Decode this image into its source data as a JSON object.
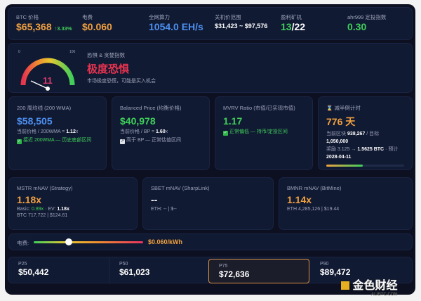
{
  "top": {
    "btc_label": "BTC 价格",
    "btc_price": "$65,368",
    "btc_change": "↑3.33%",
    "elec_label": "电费",
    "elec_value": "$0.060",
    "hash_label": "全网算力",
    "hash_value": "1054.0 EH/s",
    "shutdown_label": "关机价范围",
    "shutdown_value": "$31,423 ~ $97,576",
    "miners_label": "盈利矿机",
    "miners_profit": "13",
    "miners_total": "/22",
    "ahr_label": "ahr999 定投指数",
    "ahr_value": "0.30"
  },
  "fear": {
    "min": "0",
    "max": "100",
    "value": "11",
    "title": "恐惧 & 贪婪指数",
    "state": "极度恐惧",
    "desc": "市场极度恐慌，可能是买入机会"
  },
  "wma": {
    "title": "200 周均线 (200 WMA)",
    "value": "$58,505",
    "ratio_prefix": "当前价格 / 200WMA = ",
    "ratio": "1.12",
    "ratio_suffix": "x",
    "note": "接近 200WMA — 历史底部区间"
  },
  "bp": {
    "title": "Balanced Price (均衡价格)",
    "value": "$40,978",
    "ratio_prefix": "当前价格 / BP = ",
    "ratio": "1.60",
    "ratio_suffix": "x",
    "note": "高于 BP — 正常估值区间"
  },
  "mvrv": {
    "title": "MVRV Ratio (市值/已实现市值)",
    "value": "1.17",
    "note": "正常偏低 — 持币/定投区间"
  },
  "halving": {
    "title": "减半倒计时",
    "value": "776 天",
    "block_prefix": "当前区块 ",
    "block": "938,267",
    "target_prefix": " / 目标",
    "target": "1,050,000",
    "reward_prefix": "奖励 3.125 → ",
    "reward": "1.5625 BTC",
    "est": " · 预计",
    "date": "2028-04-11",
    "progress": 0.47
  },
  "mstr": {
    "title": "MSTR mNAV (Strategy)",
    "value": "1.18x",
    "basic_label": "Basic: ",
    "basic": "0.89x",
    "ev_label": " · EV: ",
    "ev": "1.18x",
    "holdings": "BTC 717,722 | $124.61"
  },
  "sbet": {
    "title": "SBET mNAV (SharpLink)",
    "value": "--",
    "holdings": "ETH: -- | $--"
  },
  "bmnr": {
    "title": "BMNR mNAV (BitMine)",
    "value": "1.14x",
    "holdings": "ETH 4,285,126 | $19.44"
  },
  "slider": {
    "label": "电费:",
    "value": "$0.060/kWh",
    "position": 0.32
  },
  "percentiles": [
    {
      "label": "P25",
      "value": "$50,442"
    },
    {
      "label": "P50",
      "value": "$61,023"
    },
    {
      "label": "P75",
      "value": "$72,636"
    },
    {
      "label": "P90",
      "value": "$89,472"
    }
  ],
  "watermark": {
    "text": "金色财经",
    "sub": "ALIBTC.COM"
  }
}
